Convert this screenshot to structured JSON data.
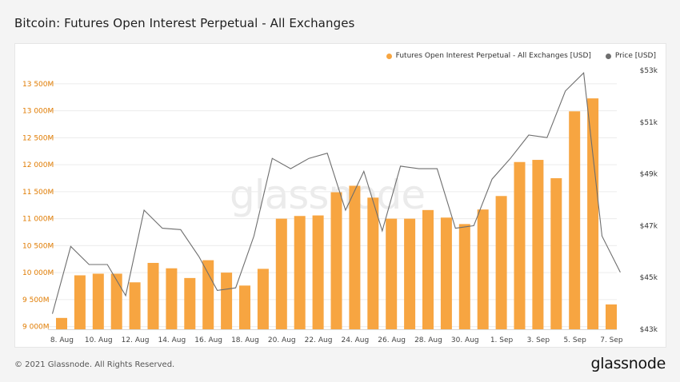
{
  "title": "Bitcoin: Futures Open Interest Perpetual - All Exchanges",
  "footer": "© 2021 Glassnode. All Rights Reserved.",
  "brand": "glassnode",
  "watermark": "glassnode",
  "colors": {
    "bars": "#f7a541",
    "price": "#6e6e6e",
    "left_axis": "#e07b00",
    "right_axis": "#333333"
  },
  "chart_data": {
    "type": "bar",
    "x_ticks": [
      "8. Aug",
      "10. Aug",
      "12. Aug",
      "14. Aug",
      "16. Aug",
      "18. Aug",
      "20. Aug",
      "22. Aug",
      "24. Aug",
      "26. Aug",
      "28. Aug",
      "30. Aug",
      "1. Sep",
      "3. Sep",
      "5. Sep",
      "7. Sep"
    ],
    "y_left_ticks": [
      "9 000M",
      "9 500M",
      "10 000M",
      "10 500M",
      "11 000M",
      "11 500M",
      "12 000M",
      "12 500M",
      "13 000M",
      "13 500M"
    ],
    "y_right_ticks": [
      "$43k",
      "$45k",
      "$47k",
      "$49k",
      "$51k",
      "$53k"
    ],
    "ylim_left": [
      8950,
      13750
    ],
    "ylim_right": [
      43000,
      53000
    ],
    "series": [
      {
        "name": "Futures Open Interest Perpetual - All Exchanges [USD]",
        "type": "bar",
        "axis": "left",
        "values": [
          9160,
          9950,
          9980,
          9980,
          9820,
          10180,
          10080,
          9900,
          10230,
          10000,
          9760,
          10070,
          11000,
          11050,
          11060,
          11490,
          11610,
          11390,
          11000,
          11000,
          11160,
          11020,
          10900,
          11170,
          11420,
          12050,
          12090,
          11750,
          12990,
          13230,
          9410
        ]
      },
      {
        "name": "Price [USD]",
        "type": "line",
        "axis": "right",
        "values": [
          43600,
          46200,
          45500,
          45500,
          44300,
          47600,
          46900,
          46850,
          45800,
          44500,
          44600,
          46600,
          49600,
          49200,
          49600,
          49800,
          47600,
          49100,
          46800,
          49300,
          49200,
          49200,
          46900,
          47000,
          48800,
          49600,
          50500,
          50400,
          52200,
          52900,
          46600,
          45200
        ]
      }
    ]
  }
}
